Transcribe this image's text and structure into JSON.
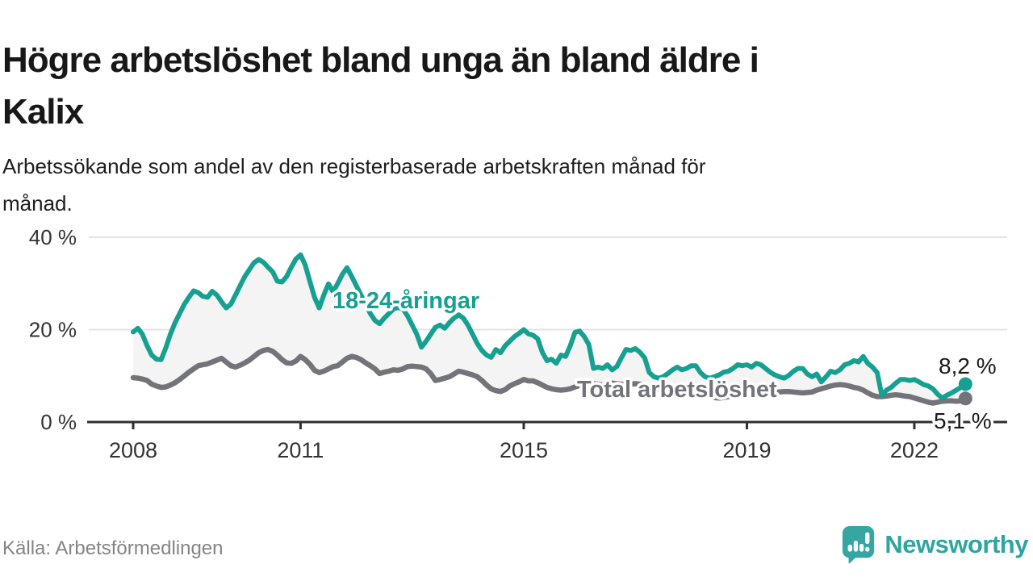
{
  "header": {
    "title": "Högre arbetslöshet bland unga än bland äldre i\nKalix",
    "subtitle": "Arbetssökande som andel av den registerbaserade arbetskraften månad för\nmånad."
  },
  "footer": {
    "source": "Källa: Arbetsförmedlingen",
    "brand": "Newsworthy",
    "brand_icon": "bar-chart-speech-bubble-icon"
  },
  "colors": {
    "youth_line": "#16A091",
    "total_line": "#73737A",
    "between_fill": "#F4F4F4",
    "grid": "#E3E3E3",
    "axis": "#2F2F2F",
    "tick_text": "#333333",
    "label_text": "#1A1A1A",
    "brand_teal": "#2EA5A1",
    "icon_teal": "#35A6A2"
  },
  "chart_data": {
    "type": "line",
    "title": "Arbetssökande som andel av den registerbaserade arbetskraften, månadsvis",
    "x_unit": "month",
    "x_start": "2008-01",
    "x_end": "2022-12",
    "ylim": [
      0,
      42
    ],
    "grid": "horizontal",
    "legend_position": "inline-labels",
    "y_ticks": [
      {
        "value": 0,
        "label": "0 %"
      },
      {
        "value": 20,
        "label": "20 %"
      },
      {
        "value": 40,
        "label": "40 %"
      }
    ],
    "x_ticks": [
      {
        "year": 2008,
        "label": "2008"
      },
      {
        "year": 2011,
        "label": "2011"
      },
      {
        "year": 2015,
        "label": "2015"
      },
      {
        "year": 2019,
        "label": "2019"
      },
      {
        "year": 2022,
        "label": "2022"
      }
    ],
    "series": [
      {
        "name": "18-24-åringar",
        "color": "#16A091",
        "end_label": "8,2 %",
        "end_value": 8.2,
        "values": [
          19.5,
          20.3,
          19.0,
          16.5,
          14.5,
          13.6,
          13.5,
          16.0,
          19.0,
          21.5,
          23.5,
          25.5,
          27.0,
          28.4,
          28.0,
          27.2,
          27.0,
          28.3,
          27.5,
          26.0,
          24.7,
          25.5,
          27.5,
          29.5,
          31.5,
          33.0,
          34.5,
          35.2,
          34.6,
          33.5,
          32.5,
          30.5,
          30.3,
          31.5,
          33.5,
          35.3,
          36.2,
          34.0,
          30.5,
          27.0,
          24.7,
          27.5,
          29.9,
          28.2,
          30.0,
          32.0,
          33.4,
          31.5,
          29.5,
          27.5,
          25.5,
          23.5,
          22.0,
          21.3,
          22.5,
          23.5,
          24.5,
          24.8,
          24.5,
          23.0,
          21.0,
          19.0,
          16.2,
          17.5,
          19.0,
          20.5,
          21.0,
          20.3,
          21.5,
          22.5,
          23.2,
          22.5,
          21.0,
          19.0,
          17.0,
          15.5,
          14.5,
          14.0,
          15.7,
          15.0,
          16.5,
          17.5,
          18.5,
          19.2,
          20.0,
          19.1,
          18.8,
          18.0,
          15.1,
          13.3,
          13.6,
          12.7,
          14.5,
          14.2,
          16.5,
          19.4,
          19.7,
          18.5,
          16.8,
          11.6,
          11.9,
          11.6,
          12.4,
          11.3,
          12.0,
          13.9,
          15.7,
          15.5,
          15.9,
          15.1,
          13.9,
          10.7,
          9.8,
          9.5,
          9.8,
          10.5,
          11.3,
          11.9,
          11.3,
          11.6,
          12.2,
          12.2,
          10.7,
          9.8,
          9.5,
          9.8,
          10.2,
          10.8,
          11.0,
          11.6,
          12.4,
          12.2,
          12.4,
          11.9,
          12.7,
          12.4,
          11.6,
          10.8,
          10.2,
          9.8,
          9.5,
          10.1,
          11.0,
          11.6,
          11.6,
          10.4,
          9.8,
          10.4,
          8.7,
          9.8,
          11.0,
          10.7,
          11.3,
          12.4,
          12.7,
          13.3,
          13.0,
          14.2,
          12.7,
          11.9,
          10.7,
          5.8,
          6.9,
          7.5,
          8.4,
          9.2,
          9.2,
          9.0,
          9.2,
          8.7,
          8.1,
          7.8,
          7.2,
          6.0,
          5.2,
          5.8,
          6.3,
          6.9,
          7.5,
          8.2
        ]
      },
      {
        "name": "Total arbetslöshet",
        "color": "#73737A",
        "end_label": "5,1 %",
        "end_value": 5.1,
        "values": [
          9.6,
          9.5,
          9.3,
          9.0,
          8.2,
          7.8,
          7.5,
          7.6,
          8.0,
          8.5,
          9.2,
          10.0,
          10.8,
          11.5,
          12.2,
          12.4,
          12.6,
          13.0,
          13.4,
          13.8,
          13.0,
          12.2,
          11.9,
          12.3,
          12.8,
          13.4,
          14.2,
          15.0,
          15.5,
          15.7,
          15.3,
          14.5,
          13.5,
          12.8,
          12.7,
          13.2,
          14.2,
          13.5,
          12.5,
          11.2,
          10.7,
          11.0,
          11.5,
          12.0,
          12.2,
          13.0,
          13.8,
          14.2,
          14.0,
          13.5,
          12.8,
          12.2,
          11.5,
          10.5,
          10.8,
          11.0,
          11.3,
          11.2,
          11.5,
          12.0,
          12.1,
          12.0,
          11.9,
          11.5,
          10.5,
          9.0,
          9.2,
          9.5,
          9.8,
          10.4,
          11.0,
          10.8,
          10.5,
          10.2,
          9.8,
          9.0,
          8.0,
          7.2,
          6.8,
          6.6,
          7.0,
          7.8,
          8.3,
          8.7,
          9.2,
          8.9,
          8.9,
          8.5,
          8.0,
          7.5,
          7.2,
          7.0,
          6.9,
          7.0,
          7.2,
          7.6,
          7.9,
          8.7,
          8.5,
          8.3,
          8.2,
          8.0,
          8.2,
          8.4,
          8.3,
          8.2,
          8.0,
          8.2,
          8.3,
          8.2,
          8.0,
          7.8,
          7.5,
          7.2,
          7.0,
          6.8,
          6.6,
          6.5,
          6.4,
          6.5,
          6.4,
          6.2,
          6.0,
          5.8,
          5.5,
          5.3,
          5.2,
          5.3,
          5.5,
          5.7,
          6.0,
          6.2,
          6.3,
          6.4,
          6.5,
          6.4,
          6.3,
          6.4,
          6.5,
          6.5,
          6.6,
          6.6,
          6.5,
          6.4,
          6.3,
          6.4,
          6.5,
          6.9,
          7.2,
          7.5,
          7.8,
          8.0,
          8.1,
          8.0,
          7.8,
          7.5,
          7.3,
          6.9,
          6.3,
          5.8,
          5.5,
          5.5,
          5.6,
          5.8,
          5.9,
          5.8,
          5.6,
          5.5,
          5.2,
          4.9,
          4.6,
          4.3,
          4.1,
          4.3,
          4.5,
          4.6,
          4.6,
          4.5,
          4.6,
          5.1
        ]
      }
    ]
  }
}
